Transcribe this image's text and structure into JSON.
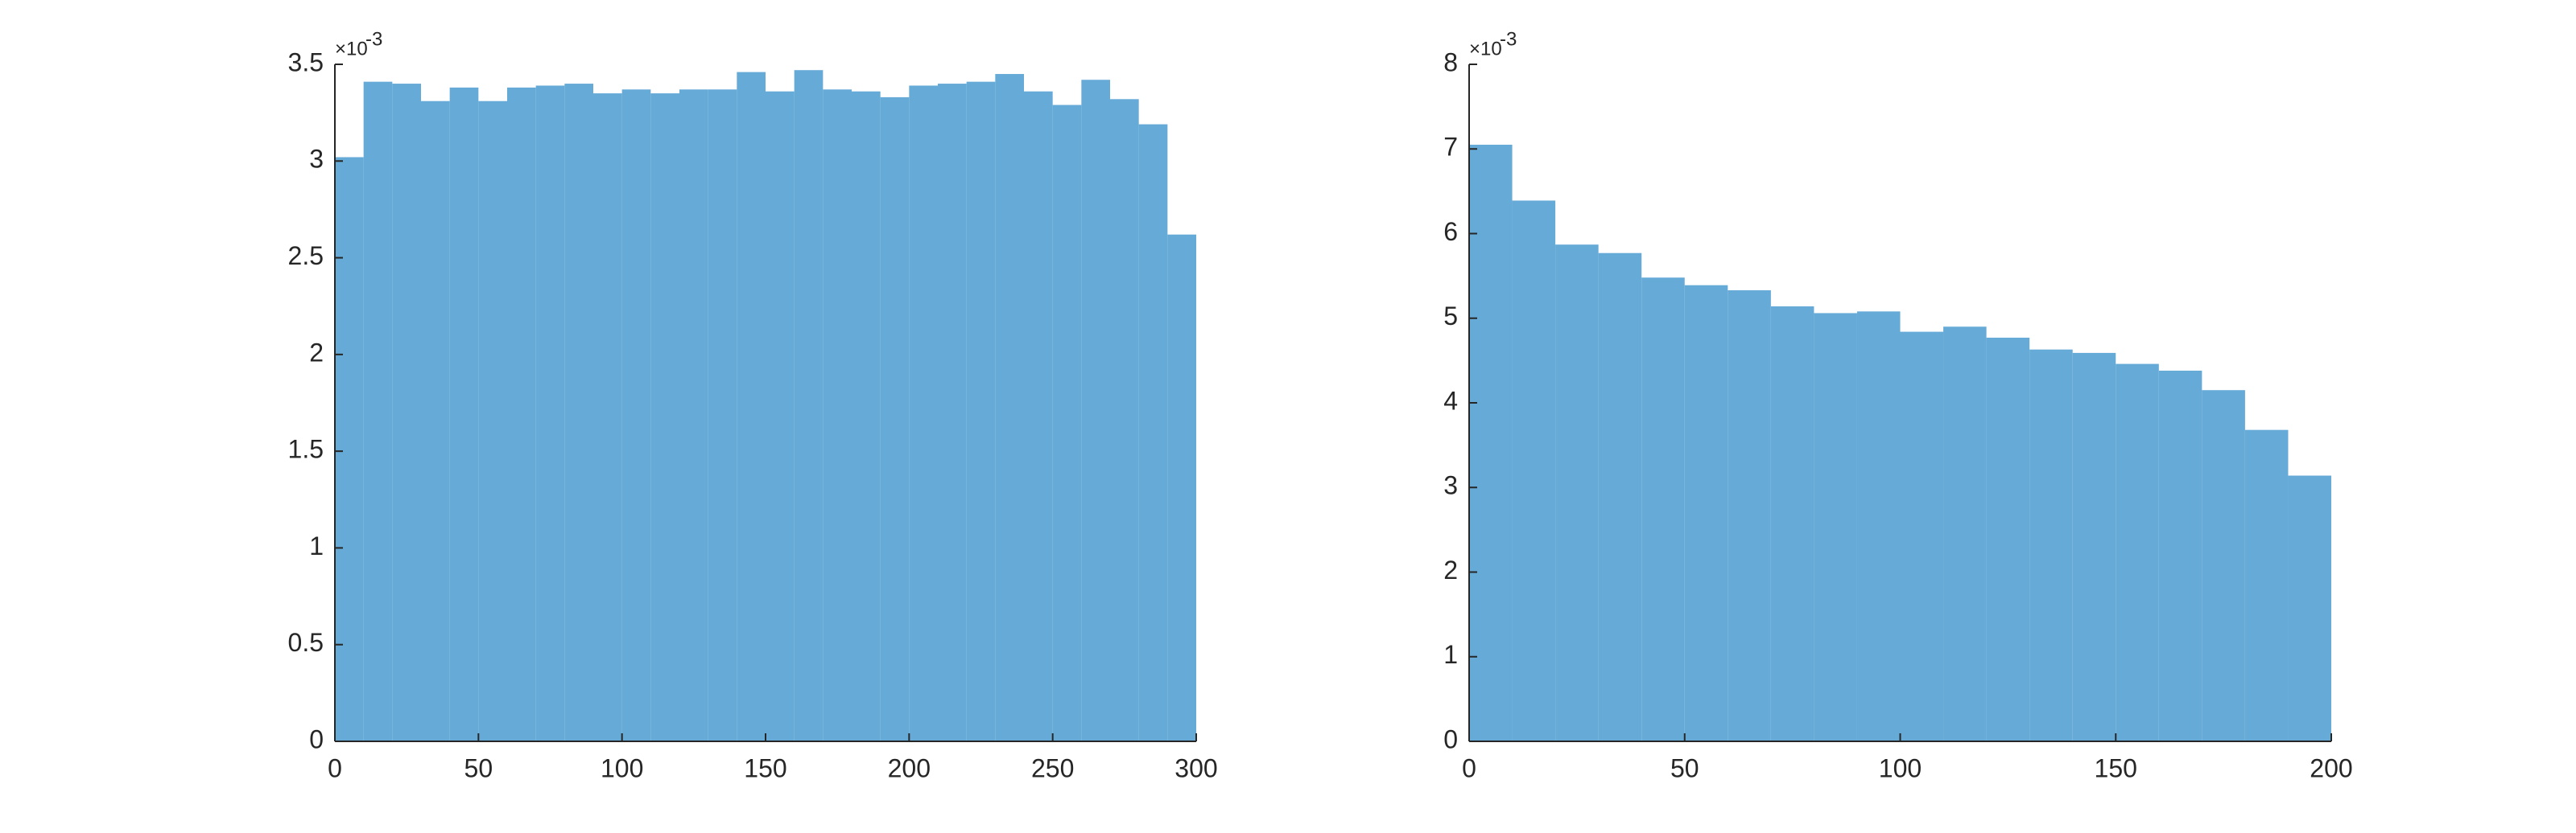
{
  "chart_data": [
    {
      "type": "histogram",
      "color": "#66aad7",
      "bins": [
        0,
        10,
        20,
        30,
        40,
        50,
        60,
        70,
        80,
        90,
        100,
        110,
        120,
        130,
        140,
        150,
        160,
        170,
        180,
        190,
        200,
        210,
        220,
        230,
        240,
        250,
        260,
        270,
        280,
        290,
        300
      ],
      "values": [
        3.02,
        3.41,
        3.4,
        3.31,
        3.38,
        3.31,
        3.38,
        3.39,
        3.4,
        3.35,
        3.37,
        3.35,
        3.37,
        3.37,
        3.46,
        3.36,
        3.47,
        3.37,
        3.36,
        3.33,
        3.39,
        3.4,
        3.41,
        3.45,
        3.36,
        3.29,
        3.42,
        3.32,
        3.19,
        2.62
      ],
      "xlim": [
        0,
        300
      ],
      "xticks": [
        0,
        50,
        100,
        150,
        200,
        250,
        300
      ],
      "ylim": [
        0,
        3.5
      ],
      "yticks": [
        0,
        0.5,
        1,
        1.5,
        2,
        2.5,
        3,
        3.5
      ],
      "y_scale_label": "×10",
      "y_scale_exponent": "-3"
    },
    {
      "type": "histogram",
      "color": "#66aad7",
      "bins": [
        0,
        10,
        20,
        30,
        40,
        50,
        60,
        70,
        80,
        90,
        100,
        110,
        120,
        130,
        140,
        150,
        160,
        170,
        180,
        190,
        200
      ],
      "values": [
        7.05,
        6.39,
        5.87,
        5.77,
        5.48,
        5.39,
        5.33,
        5.14,
        5.06,
        5.08,
        4.84,
        4.9,
        4.77,
        4.63,
        4.59,
        4.46,
        4.38,
        4.15,
        3.68,
        3.14
      ],
      "xlim": [
        0,
        200
      ],
      "xticks": [
        0,
        50,
        100,
        150,
        200
      ],
      "ylim": [
        0,
        8
      ],
      "yticks": [
        0,
        1,
        2,
        3,
        4,
        5,
        6,
        7,
        8
      ],
      "y_scale_label": "×10",
      "y_scale_exponent": "-3"
    }
  ]
}
